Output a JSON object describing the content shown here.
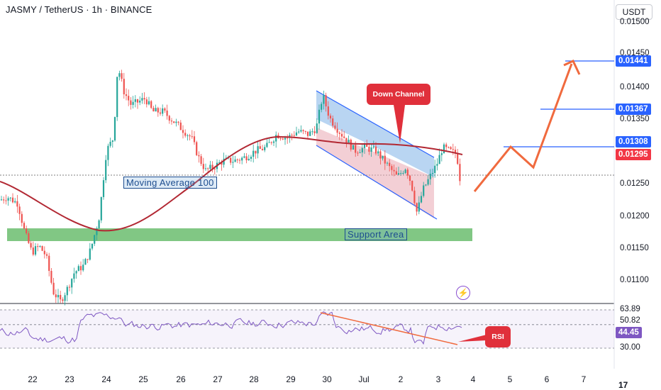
{
  "header": {
    "title": "JASMY / TetherUS · 1h · BINANCE",
    "currency": "USDT"
  },
  "price_axis": {
    "ticks": [
      "0.01500",
      "0.01450",
      "0.01400",
      "0.01350",
      "0.01250",
      "0.01200",
      "0.01150",
      "0.01100"
    ],
    "badges": [
      {
        "label": "0.01441",
        "color": "#2962ff"
      },
      {
        "label": "0.01367",
        "color": "#2962ff"
      },
      {
        "label": "0.01308",
        "color": "#2962ff"
      },
      {
        "label": "0.01295",
        "color": "#f23645"
      }
    ]
  },
  "rsi_axis": {
    "ticks": [
      "63.89",
      "50.82",
      "30.00"
    ],
    "current": "44.45",
    "current_color": "#7e57c2"
  },
  "time_axis": [
    "22",
    "23",
    "24",
    "25",
    "26",
    "27",
    "28",
    "29",
    "30",
    "Jul",
    "2",
    "3",
    "4",
    "5",
    "6",
    "7"
  ],
  "annotations": {
    "moving_average": "Moving Average 100",
    "support": "Support  Area",
    "down_channel": "Down Channel",
    "rsi": "RSI"
  },
  "colors": {
    "up_candle": "#26a69a",
    "down_candle": "#ef5350",
    "moving_average": "#b22833",
    "support_zone": "#4caf50",
    "channel": "#2962ff",
    "projection": "#f06a3e",
    "rsi_line": "#7e57c2",
    "callout": "#e0303b"
  },
  "icons": {
    "alert": "lightning-icon",
    "logo": "tradingview-logo-icon"
  },
  "logo_text": "17"
}
